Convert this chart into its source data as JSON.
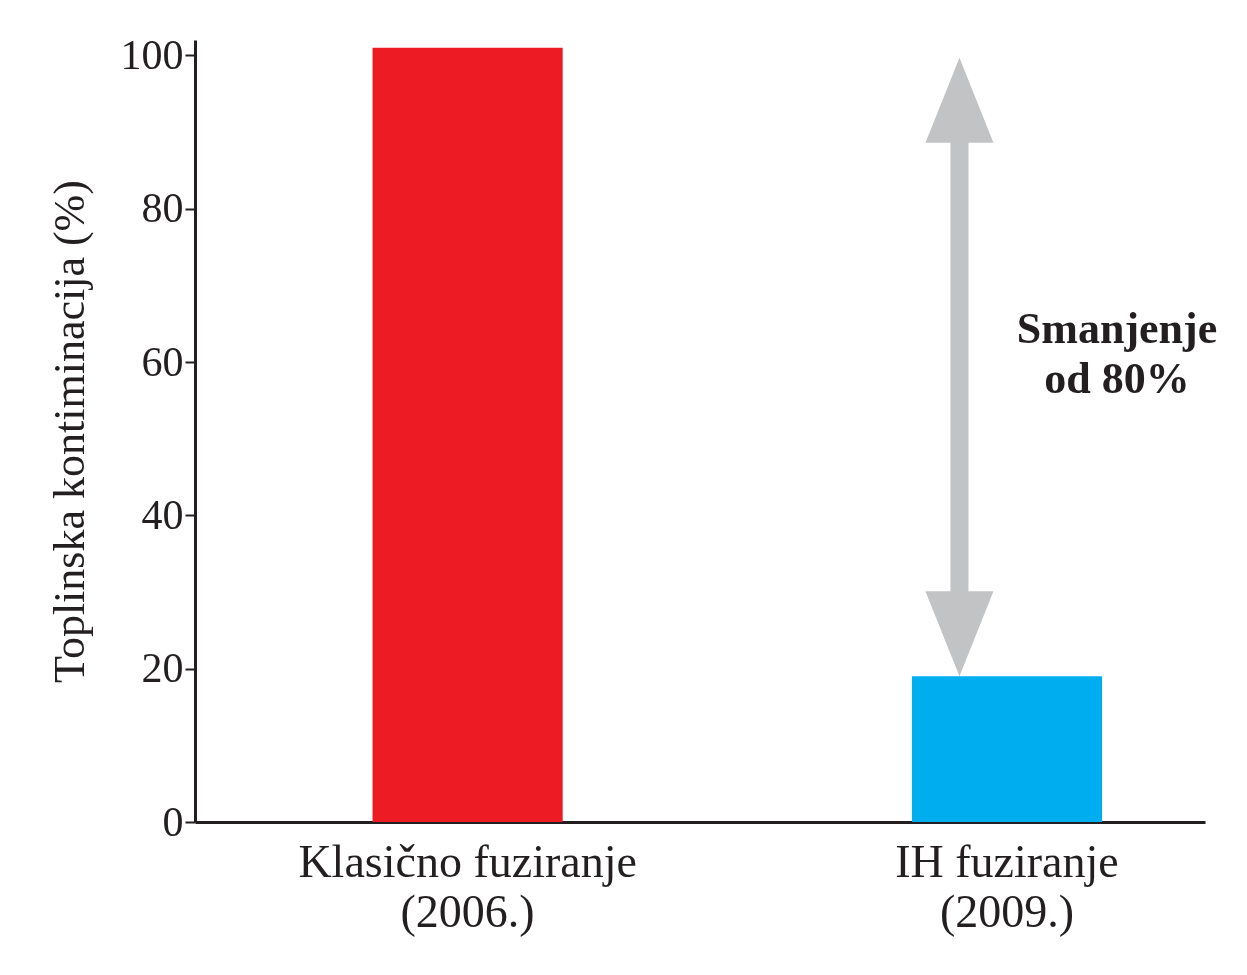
{
  "chart_data": {
    "type": "bar",
    "ylabel": "Toplinska kontiminacija (%)",
    "categories": [
      "Klasično fuziranje (2006.)",
      "IH fuziranje (2009.)"
    ],
    "values": [
      101,
      19
    ],
    "colors": [
      "#ed1c24",
      "#00aeef"
    ],
    "ylim": [
      0,
      102
    ],
    "yticks": [
      0,
      20,
      40,
      60,
      80,
      100
    ],
    "grid": false,
    "annotations": [
      "Smanjenje od 80%"
    ]
  }
}
